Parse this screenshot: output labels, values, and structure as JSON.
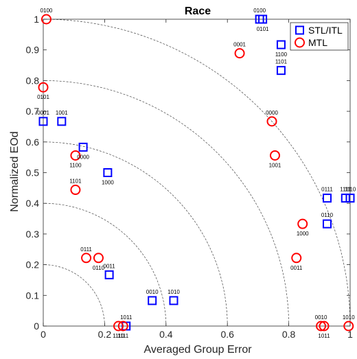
{
  "chart_data": {
    "type": "scatter",
    "title": "Race",
    "xlabel": "Averaged Group Error",
    "ylabel": "Normalized EOd",
    "xlim": [
      0,
      1
    ],
    "ylim": [
      0,
      1
    ],
    "xticks": [
      "0",
      "0.2",
      "0.4",
      "0.6",
      "0.8",
      "1"
    ],
    "yticks": [
      "0",
      "0.1",
      "0.2",
      "0.3",
      "0.4",
      "0.5",
      "0.6",
      "0.7",
      "0.8",
      "0.9",
      "1"
    ],
    "grid": "none",
    "reference_arcs": [
      0.2,
      0.4,
      0.6,
      0.8,
      1.0
    ],
    "legend": {
      "placement": "top-right",
      "entries": [
        {
          "name": "STL/ITL",
          "marker": "square",
          "color": "#0000ff"
        },
        {
          "name": "MTL",
          "marker": "circle",
          "color": "#ff0000"
        }
      ]
    },
    "series": [
      {
        "name": "STL/ITL",
        "marker": "square",
        "color": "#0000ff",
        "points": [
          {
            "x": 0.705,
            "y": 1.0,
            "label": "0100",
            "label_pos": "above"
          },
          {
            "x": 0.715,
            "y": 1.0,
            "label": "0101",
            "label_pos": "below"
          },
          {
            "x": 0.775,
            "y": 0.917,
            "label": "1100",
            "label_pos": "below"
          },
          {
            "x": 0.775,
            "y": 0.833,
            "label": "1101",
            "label_pos": "above"
          },
          {
            "x": 0.0,
            "y": 0.667,
            "label": "0001",
            "label_pos": "above"
          },
          {
            "x": 0.06,
            "y": 0.667,
            "label": "1001",
            "label_pos": "above"
          },
          {
            "x": 0.13,
            "y": 0.583,
            "label": "0000",
            "label_pos": "below"
          },
          {
            "x": 0.21,
            "y": 0.5,
            "label": "1000",
            "label_pos": "below"
          },
          {
            "x": 0.925,
            "y": 0.417,
            "label": "0111",
            "label_pos": "above"
          },
          {
            "x": 0.925,
            "y": 0.333,
            "label": "0110",
            "label_pos": "above"
          },
          {
            "x": 0.985,
            "y": 0.417,
            "label": "1111",
            "label_pos": "above"
          },
          {
            "x": 1.0,
            "y": 0.417,
            "label": "1110",
            "label_pos": "above"
          },
          {
            "x": 0.215,
            "y": 0.167,
            "label": "0011",
            "label_pos": "above"
          },
          {
            "x": 0.355,
            "y": 0.083,
            "label": "0010",
            "label_pos": "above"
          },
          {
            "x": 0.425,
            "y": 0.083,
            "label": "1010",
            "label_pos": "above"
          },
          {
            "x": 0.27,
            "y": 0.0,
            "label": "1011",
            "label_pos": "above"
          }
        ]
      },
      {
        "name": "MTL",
        "marker": "circle",
        "color": "#ff0000",
        "points": [
          {
            "x": 0.01,
            "y": 1.0,
            "label": "0100",
            "label_pos": "above"
          },
          {
            "x": 0.0,
            "y": 0.778,
            "label": "0101",
            "label_pos": "below"
          },
          {
            "x": 0.64,
            "y": 0.889,
            "label": "0001",
            "label_pos": "above"
          },
          {
            "x": 0.745,
            "y": 0.667,
            "label": "0000",
            "label_pos": "above"
          },
          {
            "x": 0.755,
            "y": 0.556,
            "label": "1001",
            "label_pos": "below"
          },
          {
            "x": 0.105,
            "y": 0.556,
            "label": "1100",
            "label_pos": "below"
          },
          {
            "x": 0.105,
            "y": 0.444,
            "label": "1101",
            "label_pos": "above"
          },
          {
            "x": 0.845,
            "y": 0.333,
            "label": "1000",
            "label_pos": "below"
          },
          {
            "x": 0.825,
            "y": 0.222,
            "label": "0011",
            "label_pos": "below"
          },
          {
            "x": 0.14,
            "y": 0.222,
            "label": "0111",
            "label_pos": "above"
          },
          {
            "x": 0.18,
            "y": 0.222,
            "label": "0110",
            "label_pos": "below"
          },
          {
            "x": 0.245,
            "y": 0.0,
            "label": "1110",
            "label_pos": "below"
          },
          {
            "x": 0.26,
            "y": 0.0,
            "label": "1111",
            "label_pos": "below"
          },
          {
            "x": 0.905,
            "y": 0.0,
            "label": "0010",
            "label_pos": "above"
          },
          {
            "x": 0.915,
            "y": 0.0,
            "label": "1011",
            "label_pos": "below"
          },
          {
            "x": 0.995,
            "y": 0.0,
            "label": "1010",
            "label_pos": "above"
          }
        ]
      }
    ]
  }
}
